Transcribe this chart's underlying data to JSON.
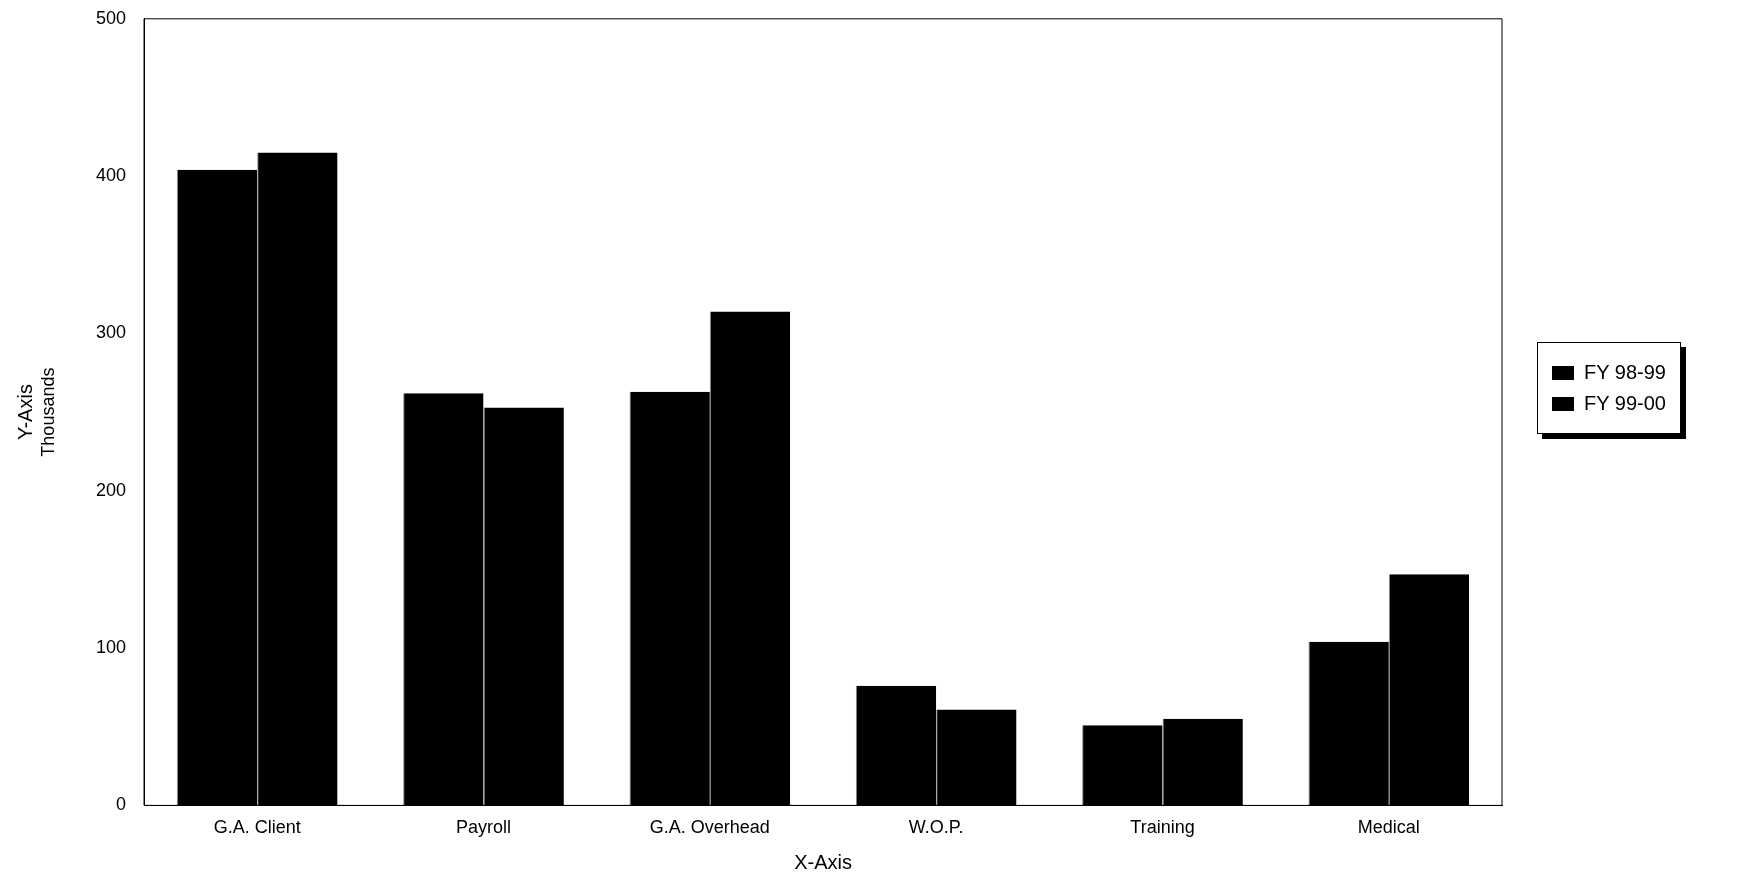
{
  "chart_data": {
    "type": "bar",
    "xlabel": "X-Axis",
    "ylabel": "Y-Axis",
    "annotations": [
      "Thousands"
    ],
    "categories": [
      "G.A. Client",
      "Payroll",
      "G.A. Overhead",
      "W.O.P.",
      "Training",
      "Medical"
    ],
    "series": [
      {
        "name": "FY 98-99",
        "color": "#000000",
        "values": [
          404,
          262,
          263,
          76,
          51,
          104
        ]
      },
      {
        "name": "FY 99-00",
        "color": "#000000",
        "values": [
          415,
          253,
          314,
          61,
          55,
          147
        ]
      }
    ],
    "ylim": [
      0,
      500
    ],
    "yticks": [
      0,
      100,
      200,
      300,
      400,
      500
    ],
    "grid": false,
    "legend": "right"
  }
}
